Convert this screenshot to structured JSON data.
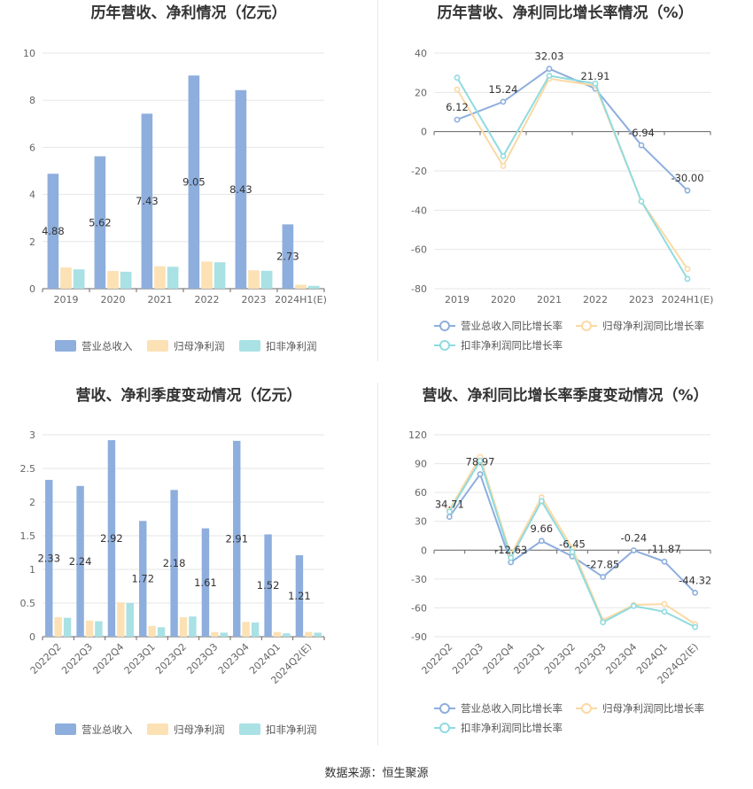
{
  "footer": {
    "source": "数据来源：恒生聚源"
  },
  "chart_data": [
    {
      "id": "annual_revenue_profit",
      "type": "bar",
      "title": "历年营收、净利情况（亿元）",
      "categories": [
        "2019",
        "2020",
        "2021",
        "2022",
        "2023",
        "2024H1(E)"
      ],
      "ylim": [
        0,
        10
      ],
      "yticks": [
        0,
        2,
        4,
        6,
        8,
        10
      ],
      "series": [
        {
          "name": "营业总收入",
          "color": "#8eaedd",
          "labelled": true,
          "values": [
            4.88,
            5.62,
            7.43,
            9.05,
            8.43,
            2.73
          ]
        },
        {
          "name": "归母净利润",
          "color": "#fbe1b4",
          "labelled": false,
          "values": [
            0.9,
            0.75,
            0.95,
            1.15,
            0.78,
            0.17
          ]
        },
        {
          "name": "扣非净利润",
          "color": "#a9e1e4",
          "labelled": false,
          "values": [
            0.82,
            0.72,
            0.93,
            1.12,
            0.76,
            0.12
          ]
        }
      ],
      "legend": "bottom"
    },
    {
      "id": "annual_growth",
      "type": "line",
      "title": "历年营收、净利同比增长率情况（%）",
      "categories": [
        "2019",
        "2020",
        "2021",
        "2022",
        "2023",
        "2024H1(E)"
      ],
      "ylim": [
        -80,
        40
      ],
      "yticks": [
        -80,
        -60,
        -40,
        -20,
        0,
        20,
        40
      ],
      "series": [
        {
          "name": "营业总收入同比增长率",
          "color": "#8eaedd",
          "labelled": true,
          "values": [
            6.12,
            15.24,
            32.03,
            21.91,
            -6.94,
            -30.0
          ],
          "labels": [
            "6.12",
            "15.24",
            "32.03",
            "21.91",
            "-6.94",
            "-30.00"
          ]
        },
        {
          "name": "归母净利润同比增长率",
          "color": "#fbd9a4",
          "labelled": false,
          "values": [
            21.5,
            -17.5,
            27.0,
            23.5,
            -35.5,
            -70.0
          ]
        },
        {
          "name": "扣非净利润同比增长率",
          "color": "#8fdbe0",
          "labelled": false,
          "values": [
            27.5,
            -12.5,
            28.5,
            24.5,
            -35.5,
            -75.0
          ]
        }
      ],
      "legend": "bottom"
    },
    {
      "id": "quarterly_revenue_profit",
      "type": "bar",
      "title": "营收、净利季度变动情况（亿元）",
      "categories": [
        "2022Q2",
        "2022Q3",
        "2022Q4",
        "2023Q1",
        "2023Q2",
        "2023Q3",
        "2023Q4",
        "2024Q1",
        "2024Q2(E)"
      ],
      "ylim": [
        0,
        3
      ],
      "yticks": [
        0,
        0.5,
        1,
        1.5,
        2,
        2.5,
        3
      ],
      "series": [
        {
          "name": "营业总收入",
          "color": "#8eaedd",
          "labelled": true,
          "values": [
            2.33,
            2.24,
            2.92,
            1.72,
            2.18,
            1.61,
            2.91,
            1.52,
            1.21
          ]
        },
        {
          "name": "归母净利润",
          "color": "#fbe1b4",
          "labelled": false,
          "values": [
            0.29,
            0.24,
            0.51,
            0.16,
            0.29,
            0.07,
            0.22,
            0.07,
            0.07
          ]
        },
        {
          "name": "扣非净利润",
          "color": "#a9e1e4",
          "labelled": false,
          "values": [
            0.28,
            0.23,
            0.5,
            0.14,
            0.3,
            0.06,
            0.21,
            0.05,
            0.06
          ]
        }
      ],
      "legend": "bottom"
    },
    {
      "id": "quarterly_growth",
      "type": "line",
      "title": "营收、净利同比增长率季度变动情况（%）",
      "categories": [
        "2022Q2",
        "2022Q3",
        "2022Q4",
        "2023Q1",
        "2023Q2",
        "2023Q3",
        "2023Q4",
        "2024Q1",
        "2024Q2(E)"
      ],
      "ylim": [
        -90,
        120
      ],
      "yticks": [
        -90,
        -60,
        -30,
        0,
        30,
        60,
        90,
        120
      ],
      "series": [
        {
          "name": "营业总收入同比增长率",
          "color": "#8eaedd",
          "labelled": true,
          "values": [
            34.71,
            78.97,
            -12.63,
            9.66,
            -6.45,
            -27.85,
            -0.24,
            -11.87,
            -44.32
          ],
          "labels": [
            "34.71",
            "78.97",
            "-12.63",
            "9.66",
            "-6.45",
            "-27.85",
            "-0.24",
            "-11.87",
            "-44.32"
          ]
        },
        {
          "name": "归母净利润同比增长率",
          "color": "#fbd9a4",
          "labelled": false,
          "values": [
            42,
            97,
            -5,
            55,
            2,
            -73,
            -57,
            -56,
            -77
          ]
        },
        {
          "name": "扣非净利润同比增长率",
          "color": "#8fdbe0",
          "labelled": false,
          "values": [
            40,
            93,
            -8,
            51,
            -2,
            -75,
            -58,
            -64,
            -80
          ]
        }
      ],
      "legend": "bottom"
    }
  ]
}
